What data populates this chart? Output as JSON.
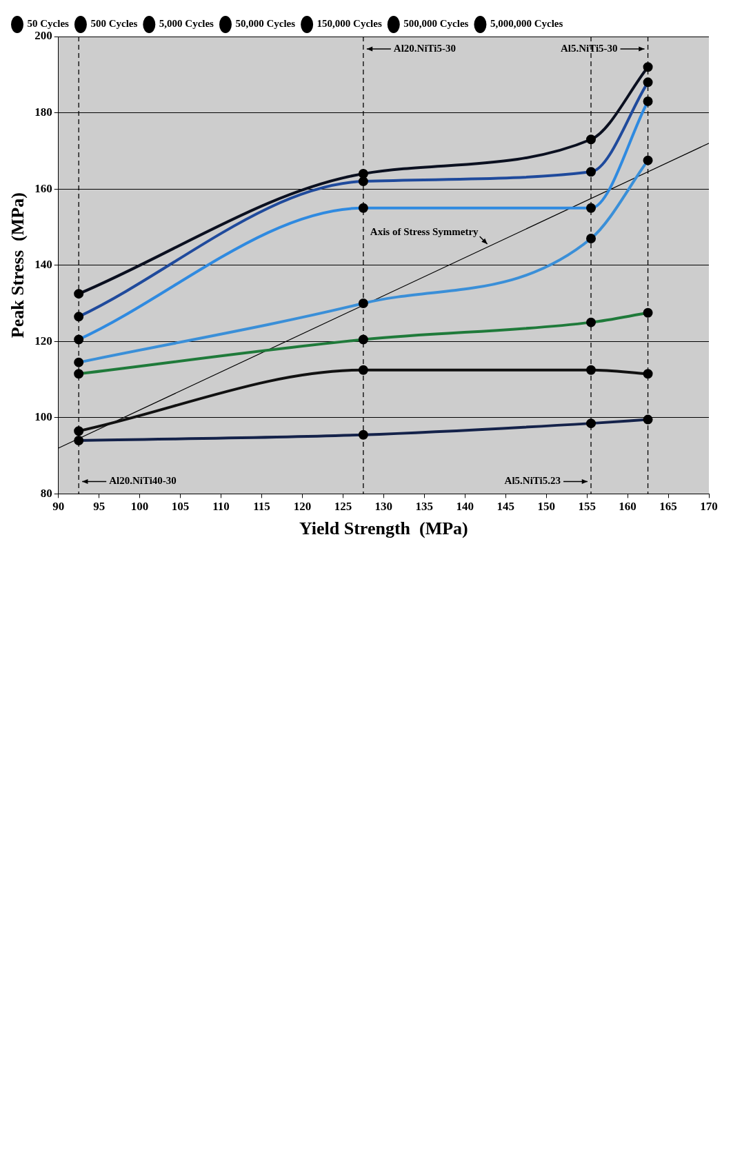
{
  "chart_data": {
    "type": "line",
    "xlabel": "Yield Strength  (MPa)",
    "ylabel": "Peak Stress  (MPa)",
    "x": [
      92.5,
      127.5,
      155.5,
      162.5
    ],
    "series": [
      {
        "name": "50 Cycles",
        "color": "#0b1020",
        "values": [
          132.5,
          164,
          173,
          192
        ]
      },
      {
        "name": "500 Cycles",
        "color": "#1f4a9c",
        "values": [
          126.5,
          162,
          164.5,
          188
        ]
      },
      {
        "name": "5,000 Cycles",
        "color": "#2f8ae0",
        "values": [
          120.5,
          155,
          155,
          183
        ]
      },
      {
        "name": "50,000 Cycles",
        "color": "#3a8fd8",
        "values": [
          114.5,
          130,
          147,
          167.5
        ]
      },
      {
        "name": "150,000 Cycles",
        "color": "#1f7a3a",
        "values": [
          111.5,
          120.5,
          125,
          127.5
        ]
      },
      {
        "name": "500,000 Cycles",
        "color": "#111111",
        "values": [
          96.5,
          112.5,
          112.5,
          111.5
        ]
      },
      {
        "name": "5,000,000 Cycles",
        "color": "#14224a",
        "values": [
          94,
          95.5,
          98.5,
          99.5
        ]
      },
      {
        "color": "#000000",
        "x": [
          90,
          170
        ],
        "values": [
          92,
          172
        ],
        "marker": "none"
      }
    ],
    "xlim": [
      90,
      170
    ],
    "xticks": [
      90,
      95,
      100,
      105,
      110,
      115,
      120,
      125,
      130,
      135,
      140,
      145,
      150,
      155,
      160,
      165,
      170
    ],
    "ylim": [
      80,
      200
    ],
    "yticks": [
      80,
      100,
      120,
      140,
      160,
      180,
      200
    ],
    "grid": "y",
    "legend": "top left",
    "marker": "circle",
    "ref_lines": [
      {
        "axis": "x",
        "value": 92.5,
        "label": "Al20.NiTi40-30",
        "line_style": "dashed"
      },
      {
        "axis": "x",
        "value": 127.5,
        "label": "Al20.NiTi5-30",
        "line_style": "dashed"
      },
      {
        "axis": "x",
        "value": 155.5,
        "label": "Al5.NiTi5.23",
        "line_style": "dashed"
      },
      {
        "axis": "x",
        "value": 162.5,
        "label": "Al5.NiTi5-30",
        "line_style": "dashed"
      }
    ],
    "annotations": [
      {
        "text": "Axis of Stress Symmetry",
        "x": 143,
        "y": 145
      }
    ]
  }
}
